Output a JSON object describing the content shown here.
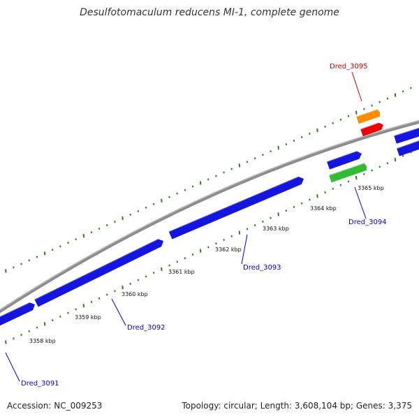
{
  "title": "Desulfotomaculum reducens MI-1, complete genome",
  "footer": {
    "accession": "Accession: NC_009253",
    "summary": "Topology: circular; Length: 3,608,104 bp; Genes: 3,375"
  },
  "colors": {
    "backbone": "#8c8c8c",
    "tick": "#2e7d1e",
    "forward_gene": "#1515e0",
    "reverse_gene": "#1515e0",
    "orange_feature": "#ff8c00",
    "red_feature": "#ee0000",
    "green_feature": "#33bb33",
    "label_blue": "#0000cc",
    "label_red": "#cc0000"
  },
  "ticks": [
    {
      "label": "3358 kbp"
    },
    {
      "label": "3359 kbp"
    },
    {
      "label": "3360 kbp"
    },
    {
      "label": "3361 kbp"
    },
    {
      "label": "3362 kbp"
    },
    {
      "label": "3363 kbp"
    },
    {
      "label": "3364 kbp"
    },
    {
      "label": "3365 kbp"
    }
  ],
  "genes": [
    {
      "label": "Dred_3091",
      "color": "label_blue"
    },
    {
      "label": "Dred_3092",
      "color": "label_blue"
    },
    {
      "label": "Dred_3093",
      "color": "label_blue"
    },
    {
      "label": "Dred_3094",
      "color": "label_blue"
    },
    {
      "label": "Dred_3095",
      "color": "label_red"
    }
  ]
}
